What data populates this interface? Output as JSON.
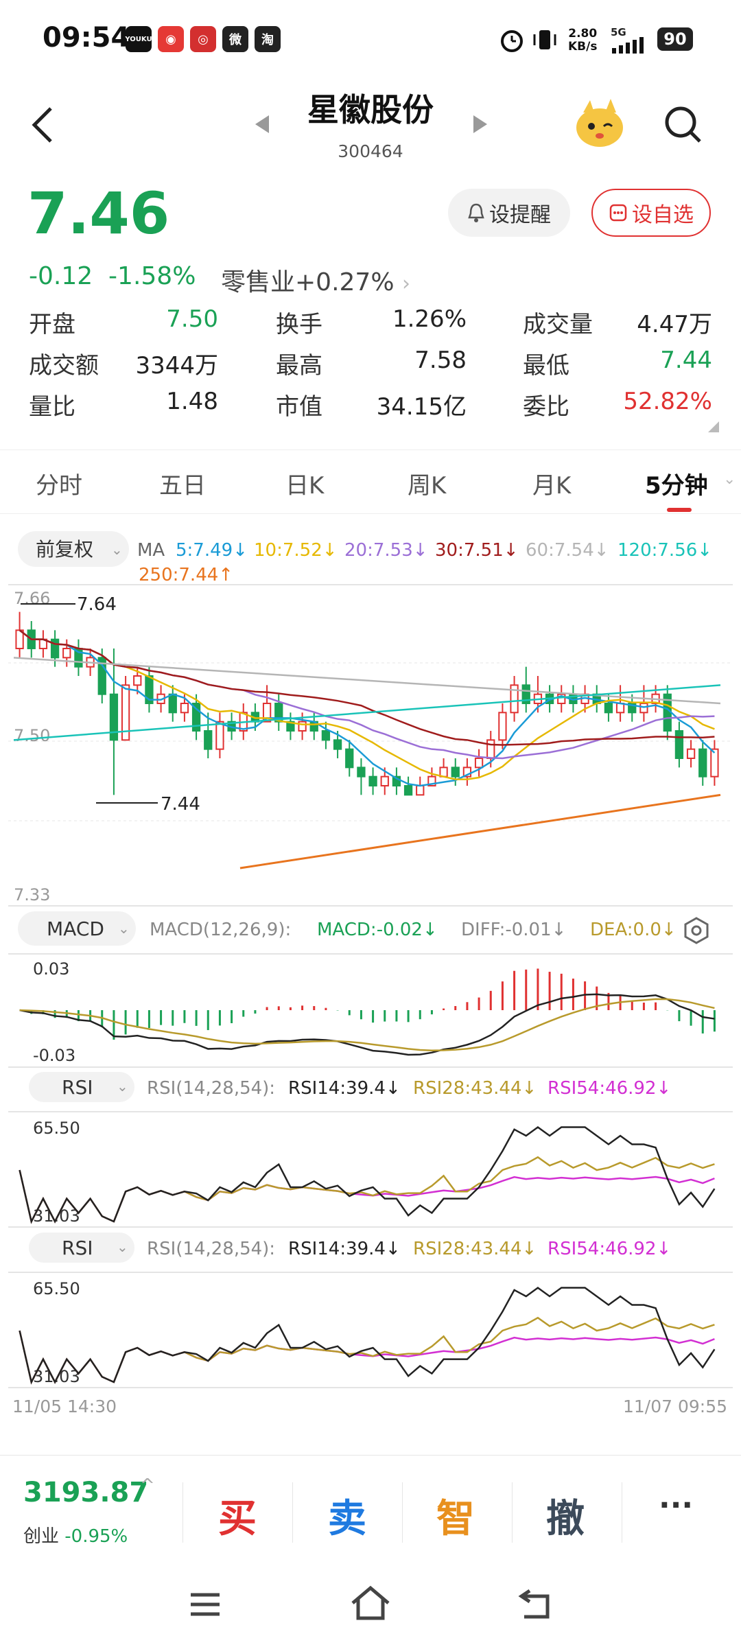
{
  "status": {
    "time": "09:54",
    "apps": [
      "YOUKU",
      "◉",
      "◎",
      "微",
      "淘"
    ],
    "net_speed": "2.80",
    "net_unit": "KB/s",
    "signal": "5G",
    "battery": "90"
  },
  "header": {
    "title": "星徽股份",
    "code": "300464",
    "alert_btn": "设提醒",
    "watch_btn": "设自选"
  },
  "quote": {
    "price": "7.46",
    "change": "-0.12",
    "change_pct": "-1.58%",
    "sector_name": "零售业",
    "sector_change": "+0.27%",
    "stats": [
      {
        "label": "开盘",
        "value": "7.50",
        "color": "#1aa155"
      },
      {
        "label": "换手",
        "value": "1.26%",
        "color": "#222222"
      },
      {
        "label": "成交量",
        "value": "4.47万",
        "color": "#222222"
      },
      {
        "label": "成交额",
        "value": "3344万",
        "color": "#222222"
      },
      {
        "label": "最高",
        "value": "7.58",
        "color": "#222222"
      },
      {
        "label": "最低",
        "value": "7.44",
        "color": "#1aa155"
      },
      {
        "label": "量比",
        "value": "1.48",
        "color": "#222222"
      },
      {
        "label": "市值",
        "value": "34.15亿",
        "color": "#222222"
      },
      {
        "label": "委比",
        "value": "52.82%",
        "color": "#e03131"
      }
    ]
  },
  "tabs": [
    "分时",
    "五日",
    "日K",
    "周K",
    "月K",
    "5分钟"
  ],
  "active_tab": 5,
  "chart": {
    "adjust_label": "前复权",
    "ma_label": "MA",
    "ma": [
      {
        "text": "5:7.49↓",
        "color": "#1a9bd6"
      },
      {
        "text": "10:7.52↓",
        "color": "#e6b800"
      },
      {
        "text": "20:7.53↓",
        "color": "#9b6fd6"
      },
      {
        "text": "30:7.51↓",
        "color": "#a01c1c"
      },
      {
        "text": "60:7.54↓",
        "color": "#b5b5b5"
      },
      {
        "text": "120:7.56↓",
        "color": "#19c3b8"
      },
      {
        "text": "250:7.44↑",
        "color": "#e8741e"
      }
    ],
    "price_top": "7.66",
    "price_mid": "7.50",
    "price_bottom": "7.33",
    "high_mark": "7.64",
    "low_mark": "7.44",
    "macd_btn": "MACD",
    "macd_params": "MACD(12,26,9):",
    "macd_val": "MACD:-0.02↓",
    "diff_val": "DIFF:-0.01↓",
    "dea_val": "DEA:0.0↓",
    "macd_top": "0.03",
    "macd_bottom": "-0.03",
    "rsi_btn": "RSI",
    "rsi_params": "RSI(14,28,54):",
    "rsi14": "RSI14:39.4↓",
    "rsi28": "RSI28:43.44↓",
    "rsi54": "RSI54:46.92↓",
    "rsi_top": "65.50",
    "rsi_bottom": "31.03",
    "time_start": "11/05 14:30",
    "time_end": "11/07 09:55"
  },
  "chart_data": {
    "type": "candlestick",
    "interval": "5分钟",
    "ylim": [
      7.33,
      7.66
    ],
    "candles": [
      [
        7.6,
        7.62,
        7.64,
        7.59
      ],
      [
        7.62,
        7.6,
        7.63,
        7.59
      ],
      [
        7.6,
        7.61,
        7.62,
        7.59
      ],
      [
        7.61,
        7.59,
        7.62,
        7.58
      ],
      [
        7.59,
        7.6,
        7.61,
        7.58
      ],
      [
        7.6,
        7.58,
        7.61,
        7.57
      ],
      [
        7.58,
        7.59,
        7.6,
        7.57
      ],
      [
        7.59,
        7.55,
        7.6,
        7.54
      ],
      [
        7.55,
        7.5,
        7.6,
        7.44
      ],
      [
        7.5,
        7.56,
        7.57,
        7.5
      ],
      [
        7.56,
        7.57,
        7.58,
        7.55
      ],
      [
        7.57,
        7.54,
        7.58,
        7.53
      ],
      [
        7.54,
        7.55,
        7.56,
        7.53
      ],
      [
        7.55,
        7.53,
        7.56,
        7.52
      ],
      [
        7.53,
        7.54,
        7.55,
        7.52
      ],
      [
        7.54,
        7.51,
        7.55,
        7.5
      ],
      [
        7.51,
        7.49,
        7.53,
        7.48
      ],
      [
        7.49,
        7.52,
        7.53,
        7.48
      ],
      [
        7.52,
        7.51,
        7.53,
        7.5
      ],
      [
        7.51,
        7.53,
        7.54,
        7.5
      ],
      [
        7.53,
        7.52,
        7.54,
        7.51
      ],
      [
        7.52,
        7.54,
        7.56,
        7.52
      ],
      [
        7.54,
        7.52,
        7.55,
        7.51
      ],
      [
        7.52,
        7.51,
        7.53,
        7.5
      ],
      [
        7.51,
        7.52,
        7.53,
        7.5
      ],
      [
        7.52,
        7.51,
        7.53,
        7.5
      ],
      [
        7.51,
        7.5,
        7.52,
        7.49
      ],
      [
        7.5,
        7.49,
        7.51,
        7.48
      ],
      [
        7.49,
        7.47,
        7.5,
        7.46
      ],
      [
        7.47,
        7.46,
        7.48,
        7.44
      ],
      [
        7.46,
        7.45,
        7.47,
        7.44
      ],
      [
        7.45,
        7.46,
        7.47,
        7.44
      ],
      [
        7.46,
        7.45,
        7.47,
        7.44
      ],
      [
        7.45,
        7.44,
        7.46,
        7.44
      ],
      [
        7.44,
        7.45,
        7.46,
        7.44
      ],
      [
        7.45,
        7.46,
        7.47,
        7.45
      ],
      [
        7.46,
        7.47,
        7.48,
        7.46
      ],
      [
        7.47,
        7.46,
        7.48,
        7.45
      ],
      [
        7.46,
        7.47,
        7.48,
        7.45
      ],
      [
        7.47,
        7.48,
        7.49,
        7.46
      ],
      [
        7.48,
        7.5,
        7.51,
        7.47
      ],
      [
        7.5,
        7.53,
        7.54,
        7.49
      ],
      [
        7.53,
        7.56,
        7.57,
        7.52
      ],
      [
        7.56,
        7.54,
        7.58,
        7.53
      ],
      [
        7.54,
        7.55,
        7.57,
        7.53
      ],
      [
        7.55,
        7.54,
        7.56,
        7.53
      ],
      [
        7.54,
        7.55,
        7.56,
        7.53
      ],
      [
        7.55,
        7.54,
        7.56,
        7.53
      ],
      [
        7.54,
        7.55,
        7.56,
        7.53
      ],
      [
        7.55,
        7.54,
        7.56,
        7.53
      ],
      [
        7.54,
        7.53,
        7.55,
        7.52
      ],
      [
        7.53,
        7.54,
        7.56,
        7.52
      ],
      [
        7.54,
        7.53,
        7.55,
        7.52
      ],
      [
        7.53,
        7.54,
        7.56,
        7.52
      ],
      [
        7.54,
        7.55,
        7.56,
        7.53
      ],
      [
        7.55,
        7.51,
        7.56,
        7.5
      ],
      [
        7.51,
        7.48,
        7.52,
        7.47
      ],
      [
        7.48,
        7.49,
        7.5,
        7.47
      ],
      [
        7.49,
        7.46,
        7.5,
        7.45
      ],
      [
        7.46,
        7.49,
        7.5,
        7.45
      ]
    ]
  },
  "index_bar": {
    "value": "3193.87",
    "name": "创业",
    "change": "-0.95%"
  },
  "actions": [
    {
      "label": "买",
      "color": "#e03131"
    },
    {
      "label": "卖",
      "color": "#1f7ae0"
    },
    {
      "label": "智",
      "color": "#e8901e"
    },
    {
      "label": "撤",
      "color": "#3c4a5a"
    },
    {
      "label": "···",
      "color": "#333333"
    }
  ]
}
